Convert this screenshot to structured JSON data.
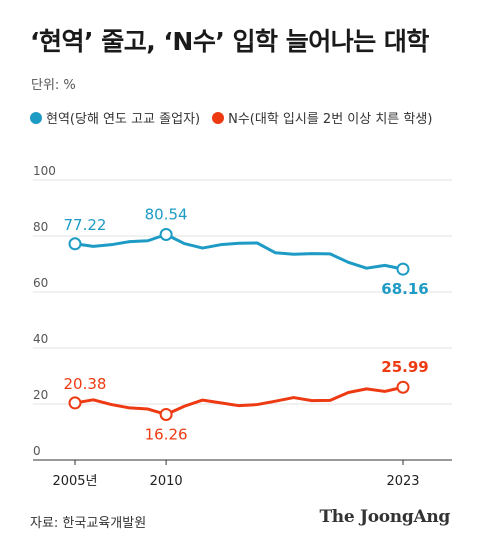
{
  "title": "‘현역’ 줄고, ‘N수’ 입학 늘어나는 대학",
  "unit": "단위: %",
  "source": "자료: 한국교육개발원",
  "brand": "The JoongAng",
  "colors": {
    "series1": "#1d9bc4",
    "series2": "#ee3a12",
    "grid": "#e3e3e3",
    "axis": "#333333"
  },
  "chart_data": {
    "type": "line",
    "x": [
      2005,
      2006,
      2007,
      2008,
      2009,
      2010,
      2011,
      2012,
      2013,
      2014,
      2015,
      2016,
      2017,
      2018,
      2019,
      2020,
      2021,
      2022,
      2023
    ],
    "xtick_labels": [
      {
        "x": 2005,
        "label": "2005년"
      },
      {
        "x": 2010,
        "label": "2010"
      },
      {
        "x": 2023,
        "label": "2023"
      }
    ],
    "yticks": [
      0,
      20,
      40,
      60,
      80,
      100
    ],
    "ylim": [
      0,
      100
    ],
    "grid": true,
    "legend_position": "top-left",
    "series": [
      {
        "name": "현역(당해 연도 고교 졸업자)",
        "color": "#1d9bc4",
        "values": [
          77.22,
          76.3,
          76.9,
          78.0,
          78.3,
          80.54,
          77.3,
          75.7,
          76.9,
          77.4,
          77.5,
          74.0,
          73.5,
          73.7,
          73.6,
          70.6,
          68.5,
          69.5,
          68.16
        ]
      },
      {
        "name": "N수(대학 입시를 2번 이상 치른 학생)",
        "color": "#ee3a12",
        "values": [
          20.38,
          21.5,
          19.8,
          18.6,
          18.2,
          16.26,
          19.2,
          21.4,
          20.4,
          19.4,
          19.8,
          21.0,
          22.3,
          21.2,
          21.3,
          24.1,
          25.4,
          24.5,
          25.99
        ]
      }
    ],
    "annotations": [
      {
        "series": 0,
        "x": 2005,
        "label": "77.22"
      },
      {
        "series": 0,
        "x": 2010,
        "label": "80.54"
      },
      {
        "series": 0,
        "x": 2023,
        "label": "68.16"
      },
      {
        "series": 1,
        "x": 2005,
        "label": "20.38"
      },
      {
        "series": 1,
        "x": 2010,
        "label": "16.26"
      },
      {
        "series": 1,
        "x": 2023,
        "label": "25.99"
      }
    ]
  }
}
